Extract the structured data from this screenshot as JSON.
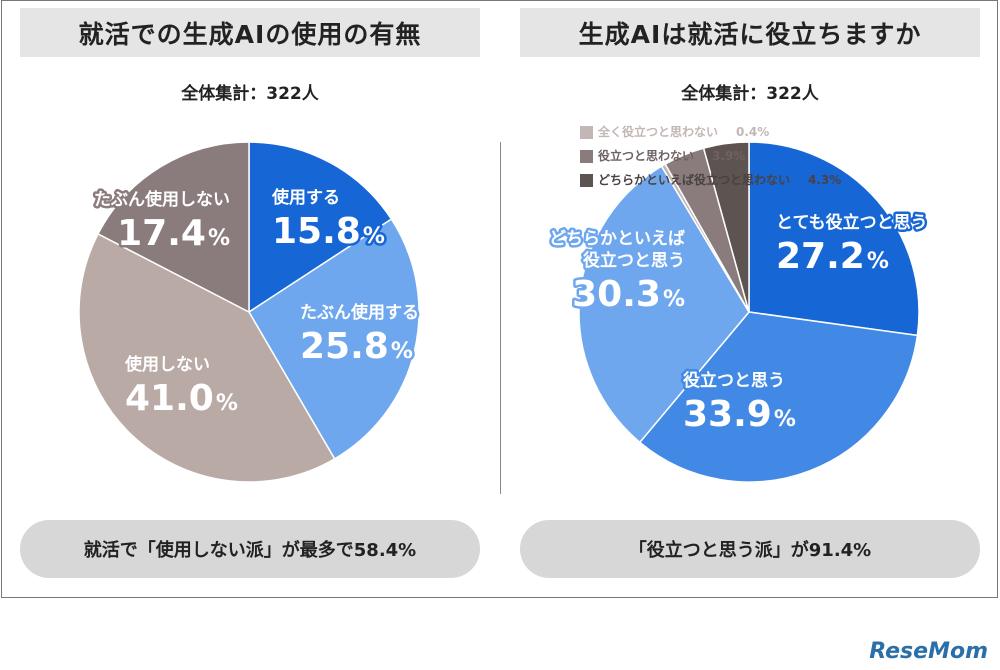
{
  "colors": {
    "dark_blue": "#1766d6",
    "light_blue": "#6fa7ee",
    "medium_blue": "#4289e6",
    "dark_gray": "#8a7c7c",
    "light_gray": "#b9aaa6",
    "charcoal": "#5d5350",
    "pale_gray": "#c2b7b5"
  },
  "left": {
    "title": "就活での生成AIの使用の有無",
    "total": "全体集計：322人",
    "summary": "就活で「使用しない派」が最多で58.4%"
  },
  "right": {
    "title": "生成AIは就活に役立ちますか",
    "total": "全体集計：322人",
    "summary": "「役立つと思う派」が91.4%"
  },
  "chart_data": [
    {
      "type": "pie",
      "title": "就活での生成AIの使用の有無",
      "subtitle": "全体集計：322人",
      "slices": [
        {
          "label": "使用する",
          "value": 15.8,
          "value_text": "15.8",
          "color": "#1766d6"
        },
        {
          "label": "たぶん使用する",
          "value": 25.8,
          "value_text": "25.8",
          "color": "#6fa7ee"
        },
        {
          "label": "使用しない",
          "value": 41.0,
          "value_text": "41.0",
          "color": "#b9aaa6"
        },
        {
          "label": "たぶん使用しない",
          "value": 17.4,
          "value_text": "17.4",
          "color": "#8a7c7c"
        }
      ]
    },
    {
      "type": "pie",
      "title": "生成AIは就活に役立ちますか",
      "subtitle": "全体集計：322人",
      "slices": [
        {
          "label": "とても役立つと思う",
          "value": 27.2,
          "value_text": "27.2",
          "color": "#1766d6"
        },
        {
          "label": "役立つと思う",
          "value": 33.9,
          "value_text": "33.9",
          "color": "#4289e6"
        },
        {
          "label": "どちらかといえば役立つと思う",
          "value": 30.3,
          "value_text": "30.3",
          "color": "#6fa7ee"
        },
        {
          "label": "全く役立つと思わない",
          "value": 0.4,
          "value_text": "0.4%",
          "color": "#c2b7b5"
        },
        {
          "label": "役立つと思わない",
          "value": 3.9,
          "value_text": "3.9%",
          "color": "#8a7c7c"
        },
        {
          "label": "どちらかといえば役立つと思わない",
          "value": 4.3,
          "value_text": "4.3%",
          "color": "#5d5350"
        }
      ]
    }
  ],
  "logo": {
    "text": "ReseMom"
  }
}
